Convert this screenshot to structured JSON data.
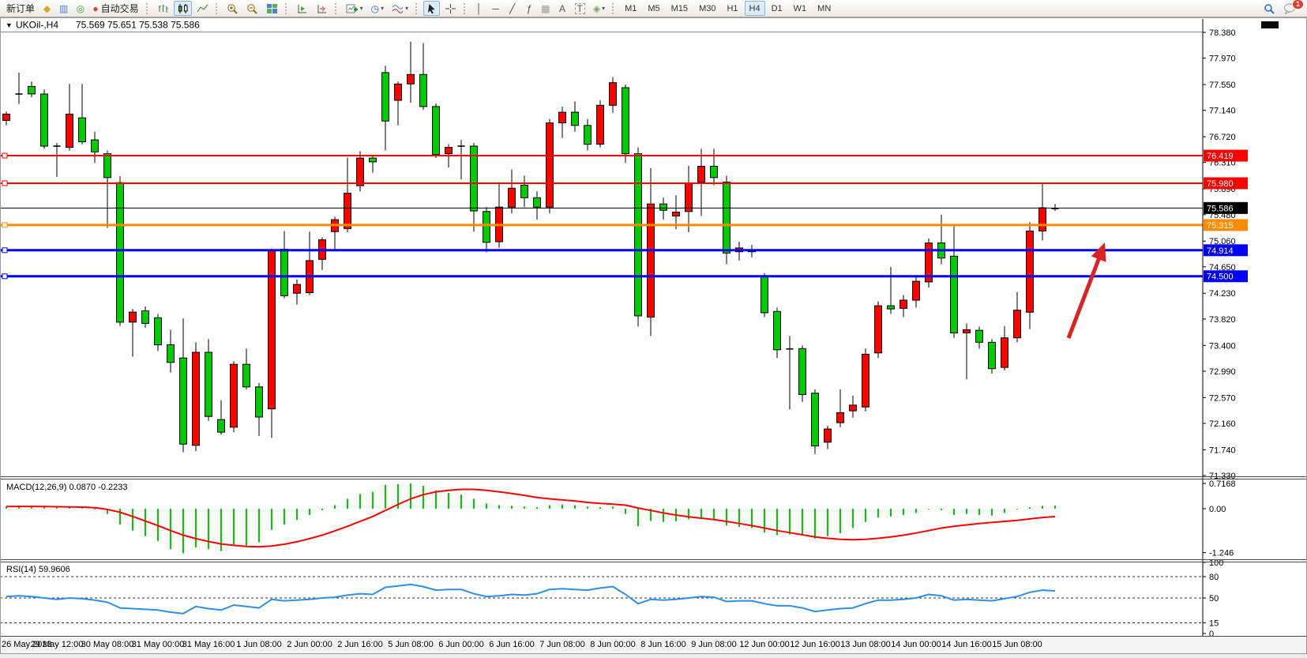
{
  "toolbar": {
    "new_order_label": "新订单",
    "autotrade_label": "自动交易",
    "timeframes": [
      "M1",
      "M5",
      "M15",
      "M30",
      "H1",
      "H4",
      "D1",
      "W1",
      "MN"
    ],
    "active_timeframe": "H4",
    "notification_count": "1"
  },
  "icons": {
    "chart_menu": "▼",
    "quotes": "◆",
    "market_watch": "▥",
    "navigator": "◎",
    "autotrade_dot": "●",
    "period": "◷",
    "crosshair": "+",
    "vline": "│",
    "hline": "─",
    "trendline": "╱",
    "fibonacci": "ƒ",
    "channel": "▦",
    "text_tool": "A",
    "label_tool": "T",
    "shapes": "◈",
    "dropdown": "▾"
  },
  "chart": {
    "symbol_period": "UKOil-,H4",
    "ohlc_text": "75.569 75.651 75.538 75.586"
  },
  "chart_data": {
    "type": "candlestick",
    "symbol": "UKOil-",
    "timeframe": "H4",
    "title": "UKOil-,H4",
    "current_price": {
      "value": 75.586,
      "label": "75.586"
    },
    "colors": {
      "up": "#ff0000",
      "down": "#00cc00",
      "wick": "#000000",
      "doji": "#000000",
      "macd_hist": "#00cc00",
      "macd_signal": "#ff0000",
      "rsi_line": "#2e8fe8",
      "level_red": "#ff0000",
      "level_orange": "#ff8c00",
      "level_blue": "#0000ff",
      "current_price_line": "#000000",
      "arrow": "#dd2222"
    },
    "price_axis": {
      "ticks": [
        "78.380",
        "77.970",
        "77.550",
        "77.140",
        "76.720",
        "76.310",
        "75.890",
        "75.480",
        "75.060",
        "74.650",
        "74.230",
        "73.820",
        "73.400",
        "72.990",
        "72.570",
        "72.160",
        "71.740",
        "71.330"
      ]
    },
    "time_axis": {
      "candles_per_label": 4,
      "labels": [
        "26 May 2023",
        "29 May 12:00",
        "30 May 08:00",
        "31 May 00:00",
        "31 May 16:00",
        "1 Jun 08:00",
        "2 Jun 00:00",
        "2 Jun 16:00",
        "5 Jun 08:00",
        "6 Jun 00:00",
        "6 Jun 16:00",
        "7 Jun 08:00",
        "8 Jun 00:00",
        "8 Jun 16:00",
        "9 Jun 08:00",
        "12 Jun 00:00",
        "12 Jun 16:00",
        "13 Jun 08:00",
        "14 Jun 00:00",
        "14 Jun 16:00",
        "15 Jun 08:00"
      ]
    },
    "hlines": [
      {
        "price": 76.419,
        "label": "76.419",
        "color": "#ff0000",
        "width": 2
      },
      {
        "price": 75.98,
        "label": "75.980",
        "color": "#ff0000",
        "width": 2
      },
      {
        "price": 75.315,
        "label": "75.315",
        "color": "#ff8c00",
        "width": 3
      },
      {
        "price": 74.914,
        "label": "74.914",
        "color": "#0000ff",
        "width": 3
      },
      {
        "price": 74.5,
        "label": "74.500",
        "color": "#0000ff",
        "width": 3
      }
    ],
    "candles": [
      [
        76.98,
        77.12,
        76.9,
        77.08
      ],
      [
        77.4,
        77.74,
        77.24,
        77.4
      ],
      [
        77.52,
        77.6,
        77.35,
        77.4
      ],
      [
        77.4,
        77.47,
        76.53,
        76.57
      ],
      [
        76.57,
        76.62,
        76.08,
        76.57
      ],
      [
        76.55,
        77.56,
        76.5,
        77.08
      ],
      [
        77.02,
        77.56,
        76.6,
        76.64
      ],
      [
        76.67,
        76.8,
        76.3,
        76.48
      ],
      [
        76.45,
        76.5,
        75.27,
        76.07
      ],
      [
        75.99,
        76.09,
        73.71,
        73.77
      ],
      [
        73.77,
        73.98,
        73.22,
        73.93
      ],
      [
        73.95,
        74.02,
        73.68,
        73.75
      ],
      [
        73.84,
        73.9,
        73.31,
        73.41
      ],
      [
        73.41,
        73.65,
        72.97,
        73.13
      ],
      [
        73.2,
        73.83,
        71.7,
        71.83
      ],
      [
        71.81,
        73.45,
        71.72,
        73.29
      ],
      [
        73.29,
        73.5,
        72.2,
        72.27
      ],
      [
        72.22,
        72.53,
        71.98,
        72.02
      ],
      [
        72.1,
        73.15,
        72.02,
        73.1
      ],
      [
        73.1,
        73.35,
        72.7,
        72.74
      ],
      [
        72.74,
        72.8,
        71.96,
        72.26
      ],
      [
        72.39,
        74.94,
        71.93,
        74.91
      ],
      [
        74.93,
        75.22,
        74.15,
        74.19
      ],
      [
        74.23,
        74.45,
        74.05,
        74.37
      ],
      [
        74.24,
        75.21,
        74.2,
        74.75
      ],
      [
        74.77,
        75.12,
        74.6,
        75.08
      ],
      [
        75.21,
        75.45,
        74.9,
        75.4
      ],
      [
        75.26,
        76.39,
        75.2,
        75.82
      ],
      [
        75.94,
        76.49,
        75.85,
        76.38
      ],
      [
        76.38,
        76.42,
        76.15,
        76.32
      ],
      [
        77.74,
        77.85,
        76.5,
        76.97
      ],
      [
        77.3,
        77.6,
        76.9,
        77.56
      ],
      [
        77.56,
        78.23,
        77.26,
        77.71
      ],
      [
        77.71,
        78.21,
        77.15,
        77.2
      ],
      [
        77.2,
        77.25,
        76.38,
        76.44
      ],
      [
        76.45,
        76.6,
        76.23,
        76.55
      ],
      [
        76.57,
        76.67,
        76.04,
        76.57
      ],
      [
        76.57,
        76.62,
        75.21,
        75.54
      ],
      [
        75.53,
        75.6,
        74.88,
        75.04
      ],
      [
        75.05,
        76.0,
        74.95,
        75.6
      ],
      [
        75.6,
        76.2,
        75.5,
        75.9
      ],
      [
        75.95,
        76.1,
        75.6,
        75.75
      ],
      [
        75.75,
        75.85,
        75.4,
        75.6
      ],
      [
        75.6,
        77.0,
        75.5,
        76.94
      ],
      [
        76.94,
        77.2,
        76.7,
        77.11
      ],
      [
        77.11,
        77.28,
        76.8,
        76.9
      ],
      [
        76.9,
        77.0,
        76.5,
        76.6
      ],
      [
        76.6,
        77.3,
        76.55,
        77.22
      ],
      [
        77.22,
        77.67,
        77.1,
        77.58
      ],
      [
        77.5,
        77.55,
        76.3,
        76.45
      ],
      [
        76.45,
        76.55,
        73.7,
        73.87
      ],
      [
        73.85,
        76.22,
        73.55,
        75.65
      ],
      [
        75.65,
        75.75,
        75.4,
        75.55
      ],
      [
        75.46,
        75.79,
        75.25,
        75.52
      ],
      [
        75.53,
        76.26,
        75.2,
        75.98
      ],
      [
        76.0,
        76.53,
        75.46,
        76.25
      ],
      [
        76.25,
        76.53,
        75.95,
        76.07
      ],
      [
        76.0,
        76.1,
        74.69,
        74.87
      ],
      [
        74.89,
        75.05,
        74.75,
        74.95
      ],
      [
        74.92,
        75.0,
        74.8,
        74.89
      ],
      [
        74.5,
        74.55,
        73.85,
        73.92
      ],
      [
        73.94,
        74.0,
        73.2,
        73.33
      ],
      [
        73.35,
        73.55,
        72.38,
        73.34
      ],
      [
        73.35,
        73.4,
        72.5,
        72.62
      ],
      [
        72.64,
        72.7,
        71.67,
        71.8
      ],
      [
        71.86,
        72.12,
        71.75,
        72.07
      ],
      [
        72.17,
        72.7,
        72.1,
        72.33
      ],
      [
        72.36,
        72.6,
        72.25,
        72.45
      ],
      [
        72.42,
        73.35,
        72.35,
        73.26
      ],
      [
        73.28,
        74.1,
        73.2,
        74.03
      ],
      [
        74.03,
        74.65,
        73.9,
        73.98
      ],
      [
        73.99,
        74.2,
        73.85,
        74.12
      ],
      [
        74.12,
        74.5,
        74.0,
        74.42
      ],
      [
        74.41,
        75.1,
        74.32,
        75.03
      ],
      [
        75.03,
        75.48,
        74.69,
        74.79
      ],
      [
        74.82,
        75.31,
        73.52,
        73.6
      ],
      [
        73.6,
        73.75,
        72.86,
        73.65
      ],
      [
        73.64,
        73.7,
        73.35,
        73.45
      ],
      [
        73.45,
        73.5,
        72.95,
        73.03
      ],
      [
        73.05,
        73.71,
        73.0,
        73.52
      ],
      [
        73.52,
        74.25,
        73.45,
        73.96
      ],
      [
        73.93,
        75.36,
        73.66,
        75.22
      ],
      [
        75.22,
        75.97,
        75.07,
        75.59
      ],
      [
        75.569,
        75.651,
        75.538,
        75.586
      ]
    ],
    "macd": {
      "label_text": "MACD(12,26,9) 0.0870 -0.2233",
      "params": "12,26,9",
      "main_value": 0.087,
      "signal_value": -0.2233,
      "axis_ticks": [
        {
          "label": "0.7168",
          "value": 0.7168
        },
        {
          "label": "0.00",
          "value": 0
        },
        {
          "label": "-1.246",
          "value": -1.246
        }
      ],
      "histogram": [
        0.06,
        0.08,
        0.07,
        0.05,
        0.03,
        0.05,
        0.03,
        -0.02,
        -0.15,
        -0.45,
        -0.62,
        -0.78,
        -0.92,
        -1.15,
        -1.27,
        -1.1,
        -1.15,
        -1.2,
        -1.06,
        -1.05,
        -0.95,
        -0.6,
        -0.45,
        -0.32,
        -0.18,
        -0.05,
        0.1,
        0.28,
        0.42,
        0.48,
        0.68,
        0.7,
        0.72,
        0.65,
        0.52,
        0.45,
        0.4,
        0.28,
        0.15,
        0.1,
        0.08,
        0.06,
        0.05,
        0.1,
        0.12,
        0.1,
        0.06,
        0.05,
        0.06,
        -0.15,
        -0.5,
        -0.35,
        -0.38,
        -0.36,
        -0.3,
        -0.28,
        -0.3,
        -0.48,
        -0.52,
        -0.55,
        -0.68,
        -0.75,
        -0.73,
        -0.75,
        -0.85,
        -0.78,
        -0.7,
        -0.55,
        -0.38,
        -0.25,
        -0.22,
        -0.18,
        -0.12,
        -0.02,
        -0.05,
        -0.18,
        -0.15,
        -0.18,
        -0.2,
        -0.12,
        -0.02,
        0.05,
        0.08,
        0.087
      ],
      "signal": [
        0.06,
        0.065,
        0.065,
        0.06,
        0.055,
        0.05,
        0.045,
        0.03,
        -0.02,
        -0.1,
        -0.22,
        -0.35,
        -0.48,
        -0.62,
        -0.75,
        -0.85,
        -0.93,
        -1.0,
        -1.04,
        -1.07,
        -1.08,
        -1.06,
        -1.01,
        -0.94,
        -0.85,
        -0.75,
        -0.63,
        -0.5,
        -0.36,
        -0.22,
        -0.05,
        0.12,
        0.28,
        0.4,
        0.48,
        0.52,
        0.55,
        0.55,
        0.52,
        0.48,
        0.43,
        0.38,
        0.32,
        0.28,
        0.25,
        0.22,
        0.18,
        0.15,
        0.13,
        0.1,
        0.02,
        -0.05,
        -0.12,
        -0.18,
        -0.23,
        -0.27,
        -0.31,
        -0.36,
        -0.42,
        -0.48,
        -0.55,
        -0.62,
        -0.68,
        -0.74,
        -0.8,
        -0.84,
        -0.87,
        -0.88,
        -0.87,
        -0.84,
        -0.8,
        -0.75,
        -0.69,
        -0.62,
        -0.55,
        -0.5,
        -0.46,
        -0.42,
        -0.39,
        -0.36,
        -0.33,
        -0.29,
        -0.25,
        -0.2233
      ]
    },
    "rsi": {
      "label_text": "RSI(14) 59.9606",
      "period": 14,
      "current_value": 59.9606,
      "levels": [
        80,
        50,
        15
      ],
      "axis_ticks": [
        {
          "label": "100",
          "value": 100
        },
        {
          "label": "80",
          "value": 80
        },
        {
          "label": "50",
          "value": 50
        },
        {
          "label": "15",
          "value": 15
        },
        {
          "label": "0",
          "value": 0
        }
      ],
      "values": [
        52,
        53,
        52,
        50,
        48,
        50,
        49,
        47,
        44,
        36,
        35,
        34,
        33,
        30,
        28,
        38,
        35,
        33,
        40,
        38,
        36,
        48,
        46,
        47,
        48,
        50,
        51,
        54,
        56,
        55,
        65,
        67,
        69,
        66,
        61,
        62,
        62,
        56,
        52,
        53,
        55,
        54,
        56,
        62,
        63,
        62,
        61,
        64,
        66,
        55,
        42,
        48,
        47,
        48,
        50,
        52,
        51,
        45,
        46,
        46,
        42,
        39,
        39,
        36,
        31,
        33,
        35,
        36,
        42,
        47,
        47,
        48,
        50,
        55,
        53,
        47,
        48,
        47,
        46,
        49,
        52,
        58,
        61,
        59.96
      ]
    },
    "annotation": {
      "type": "arrow",
      "color": "#dd2222",
      "note": "red up arrow pointing toward the 74.914 blue level"
    }
  }
}
